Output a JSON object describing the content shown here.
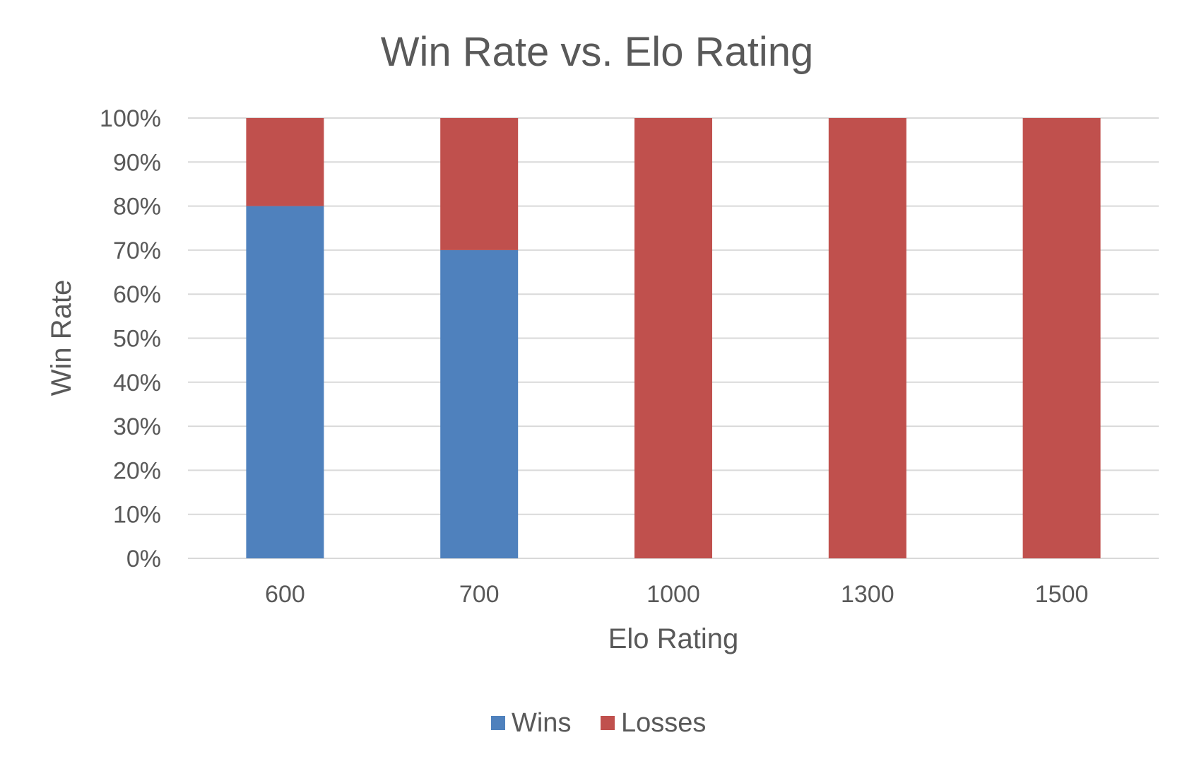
{
  "chart_data": {
    "type": "bar",
    "stacked": true,
    "title": "Win Rate vs. Elo Rating",
    "xlabel": "Elo Rating",
    "ylabel": "Win Rate",
    "categories": [
      "600",
      "700",
      "1000",
      "1300",
      "1500"
    ],
    "series": [
      {
        "name": "Wins",
        "color": "#4f81bd",
        "values": [
          0.8,
          0.7,
          0,
          0,
          0
        ]
      },
      {
        "name": "Losses",
        "color": "#c0504d",
        "values": [
          0.2,
          0.3,
          1.0,
          1.0,
          1.0
        ]
      }
    ],
    "ylim": [
      0,
      1
    ],
    "yticks": [
      "0%",
      "10%",
      "20%",
      "30%",
      "40%",
      "50%",
      "60%",
      "70%",
      "80%",
      "90%",
      "100%"
    ],
    "grid": true,
    "legend": "bottom"
  }
}
